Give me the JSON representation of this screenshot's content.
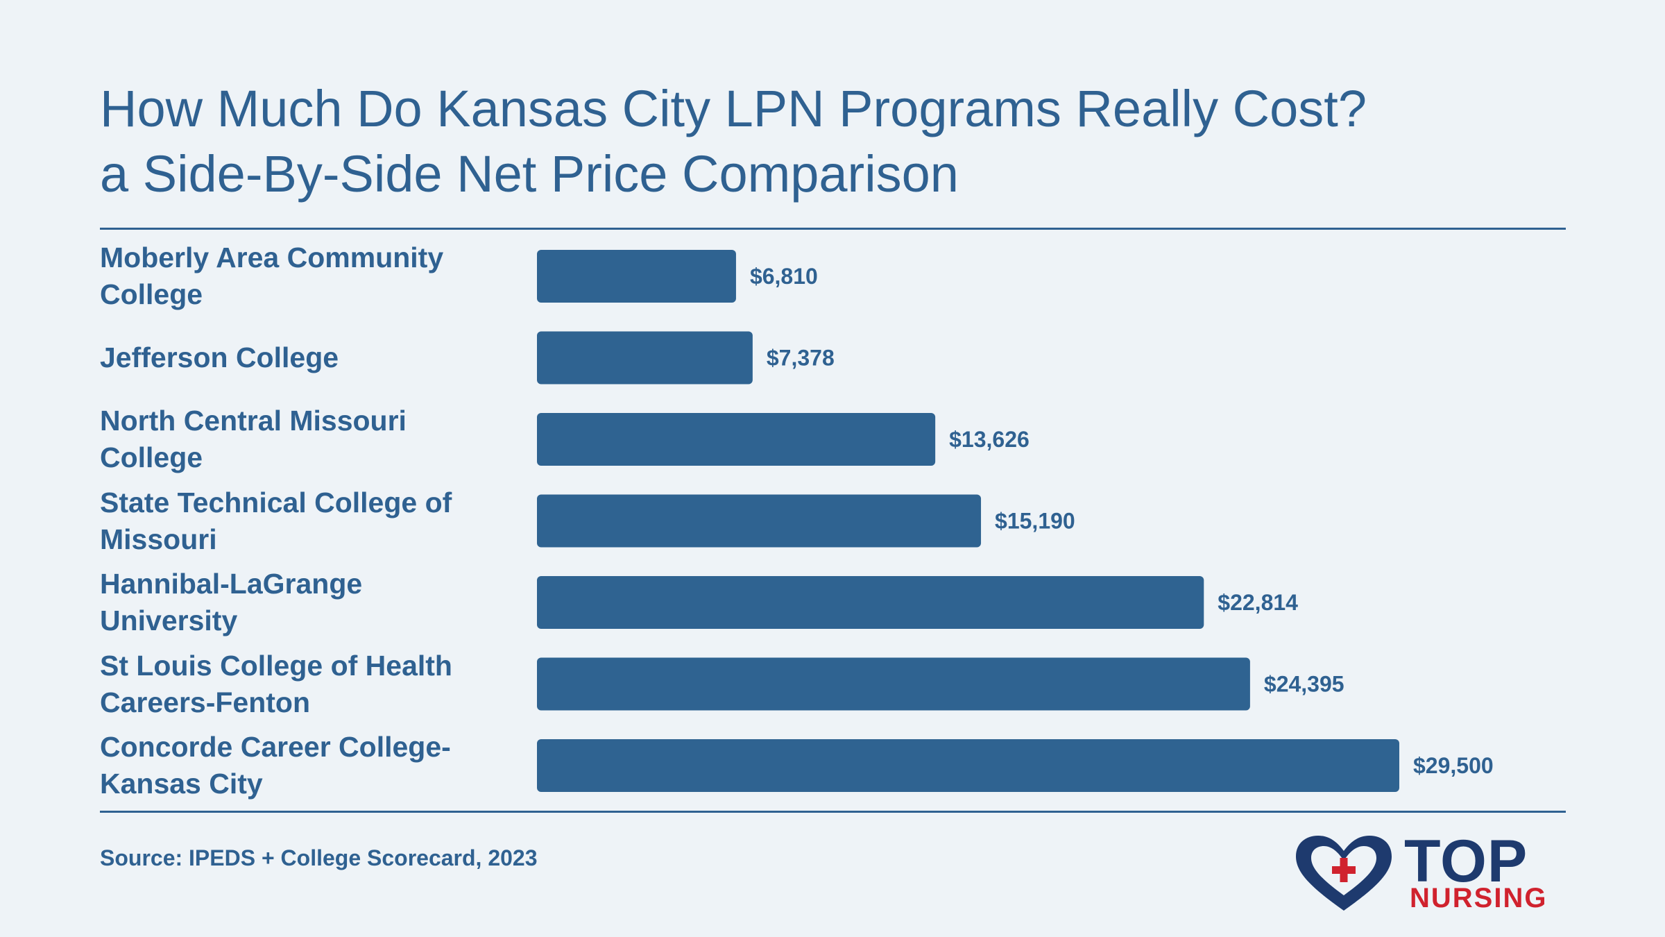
{
  "header": {
    "title_line_1": "How Much Do Kansas City LPN Programs Really Cost?",
    "title_line_2": "a Side-By-Side Net Price Comparison"
  },
  "chart_data": {
    "type": "bar",
    "orientation": "horizontal",
    "categories": [
      "Moberly Area Community College",
      "Jefferson College",
      "North Central Missouri College",
      "State Technical College of Missouri",
      "Hannibal-LaGrange University",
      "St Louis College of Health Careers-Fenton",
      "Concorde Career College-Kansas City"
    ],
    "values": [
      6810,
      7378,
      13626,
      15190,
      22814,
      24395,
      29500
    ],
    "value_labels": [
      "$6,810",
      "$7,378",
      "$13,626",
      "$15,190",
      "$22,814",
      "$24,395",
      "$29,500"
    ],
    "xlim": [
      0,
      29500
    ],
    "grid": false,
    "legend": "none",
    "bar_color": "#2f6391"
  },
  "footer": {
    "source": "Source: IPEDS + College Scorecard, 2023"
  },
  "logo": {
    "word_1": "TOP",
    "word_2": "NURSING",
    "icon": "heart-cross-icon",
    "colors": {
      "navy": "#1e3a6e",
      "red": "#d0222e"
    }
  },
  "colors": {
    "background": "#eef3f7",
    "text": "#2f6191",
    "accent": "#2f6391"
  }
}
